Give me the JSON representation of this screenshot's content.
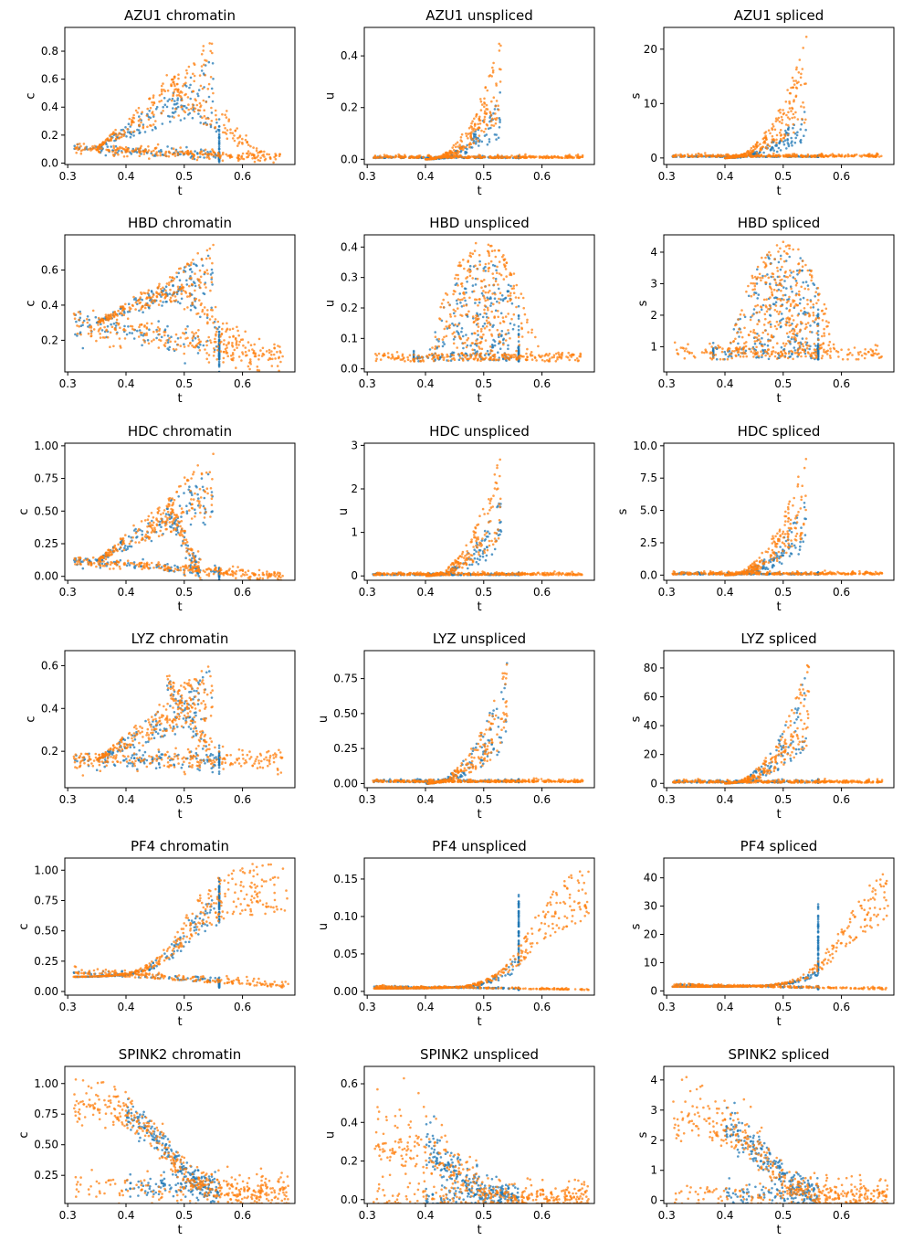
{
  "colors": {
    "series_blue": "#1f77b4",
    "series_orange": "#ff7f0e",
    "axes": "#000000",
    "background": "#ffffff"
  },
  "chart_data": [
    {
      "type": "scatter",
      "title": "AZU1 chromatin",
      "xlabel": "t",
      "ylabel": "c",
      "xlim": [
        0.295,
        0.69
      ],
      "ylim": [
        -0.01,
        0.97
      ],
      "xticks": [
        0.3,
        0.4,
        0.5,
        0.6
      ],
      "xtick_labels": [
        "0.3",
        "0.4",
        "0.5",
        "0.6"
      ],
      "yticks": [
        0.0,
        0.2,
        0.4,
        0.6,
        0.8
      ],
      "ytick_labels": [
        "0.0",
        "0.2",
        "0.4",
        "0.6",
        "0.8"
      ],
      "pattern": "chromatin_bell",
      "peak": 0.92,
      "tail": 0.03,
      "base": 0.11,
      "high_t": 0.64,
      "blue_peak": 0.75
    },
    {
      "type": "scatter",
      "title": "AZU1 unspliced",
      "xlabel": "t",
      "ylabel": "u",
      "xlim": [
        0.295,
        0.69
      ],
      "ylim": [
        -0.02,
        0.51
      ],
      "xticks": [
        0.3,
        0.4,
        0.5,
        0.6
      ],
      "xtick_labels": [
        "0.3",
        "0.4",
        "0.5",
        "0.6"
      ],
      "yticks": [
        0.0,
        0.2,
        0.4
      ],
      "ytick_labels": [
        "0.0",
        "0.2",
        "0.4"
      ],
      "pattern": "rise_spike",
      "peak": 0.48,
      "base": 0.005,
      "tail": 0.005,
      "peak_t": 0.53,
      "blue_peak": 0.28
    },
    {
      "type": "scatter",
      "title": "AZU1 spliced",
      "xlabel": "t",
      "ylabel": "s",
      "xlim": [
        0.295,
        0.69
      ],
      "ylim": [
        -1.2,
        24
      ],
      "xticks": [
        0.3,
        0.4,
        0.5,
        0.6
      ],
      "xtick_labels": [
        "0.3",
        "0.4",
        "0.5",
        "0.6"
      ],
      "yticks": [
        0,
        10,
        20
      ],
      "ytick_labels": [
        "0",
        "10",
        "20"
      ],
      "pattern": "rise_spike",
      "peak": 22.5,
      "base": 0.2,
      "tail": 0.1,
      "peak_t": 0.54,
      "blue_peak": 10
    },
    {
      "type": "scatter",
      "title": "HBD chromatin",
      "xlabel": "t",
      "ylabel": "c",
      "xlim": [
        0.295,
        0.69
      ],
      "ylim": [
        0.02,
        0.8
      ],
      "xticks": [
        0.3,
        0.4,
        0.5,
        0.6
      ],
      "xtick_labels": [
        "0.3",
        "0.4",
        "0.5",
        "0.6"
      ],
      "yticks": [
        0.2,
        0.4,
        0.6
      ],
      "ytick_labels": [
        "0.2",
        "0.4",
        "0.6"
      ],
      "pattern": "chromatin_bell",
      "peak": 0.76,
      "tail": 0.1,
      "base": 0.3,
      "high_t": 0.62,
      "blue_peak": 0.72
    },
    {
      "type": "scatter",
      "title": "HBD unspliced",
      "xlabel": "t",
      "ylabel": "u",
      "xlim": [
        0.295,
        0.69
      ],
      "ylim": [
        -0.01,
        0.44
      ],
      "xticks": [
        0.3,
        0.4,
        0.5,
        0.6
      ],
      "xtick_labels": [
        "0.3",
        "0.4",
        "0.5",
        "0.6"
      ],
      "yticks": [
        0.0,
        0.1,
        0.2,
        0.3,
        0.4
      ],
      "ytick_labels": [
        "0.0",
        "0.1",
        "0.2",
        "0.3",
        "0.4"
      ],
      "pattern": "bump",
      "peak": 0.42,
      "base": 0.025,
      "tail": 0.06,
      "peak_t": 0.5,
      "blue_peak": 0.36
    },
    {
      "type": "scatter",
      "title": "HBD spliced",
      "xlabel": "t",
      "ylabel": "s",
      "xlim": [
        0.295,
        0.69
      ],
      "ylim": [
        0.2,
        4.55
      ],
      "xticks": [
        0.3,
        0.4,
        0.5,
        0.6
      ],
      "xtick_labels": [
        "0.3",
        "0.4",
        "0.5",
        "0.6"
      ],
      "yticks": [
        1,
        2,
        3,
        4
      ],
      "ytick_labels": [
        "1",
        "2",
        "3",
        "4"
      ],
      "pattern": "bump",
      "peak": 4.35,
      "base": 0.6,
      "tail": 1.1,
      "peak_t": 0.5,
      "blue_peak": 4.2
    },
    {
      "type": "scatter",
      "title": "HDC chromatin",
      "xlabel": "t",
      "ylabel": "c",
      "xlim": [
        0.295,
        0.69
      ],
      "ylim": [
        -0.03,
        1.02
      ],
      "xticks": [
        0.3,
        0.4,
        0.5,
        0.6
      ],
      "xtick_labels": [
        "0.3",
        "0.4",
        "0.5",
        "0.6"
      ],
      "yticks": [
        0.0,
        0.25,
        0.5,
        0.75,
        1.0
      ],
      "ytick_labels": [
        "0.00",
        "0.25",
        "0.50",
        "0.75",
        "1.00"
      ],
      "pattern": "chromatin_bell",
      "peak": 0.97,
      "tail": 0.0,
      "base": 0.12,
      "high_t": 0.53,
      "blue_peak": 0.85
    },
    {
      "type": "scatter",
      "title": "HDC unspliced",
      "xlabel": "t",
      "ylabel": "u",
      "xlim": [
        0.295,
        0.69
      ],
      "ylim": [
        -0.1,
        3.05
      ],
      "xticks": [
        0.3,
        0.4,
        0.5,
        0.6
      ],
      "xtick_labels": [
        "0.3",
        "0.4",
        "0.5",
        "0.6"
      ],
      "yticks": [
        0,
        1,
        2,
        3
      ],
      "ytick_labels": [
        "0",
        "1",
        "2",
        "3"
      ],
      "pattern": "rise_spike",
      "peak": 2.9,
      "base": 0.02,
      "tail": 0.02,
      "peak_t": 0.53,
      "blue_peak": 1.9
    },
    {
      "type": "scatter",
      "title": "HDC spliced",
      "xlabel": "t",
      "ylabel": "s",
      "xlim": [
        0.295,
        0.69
      ],
      "ylim": [
        -0.4,
        10.2
      ],
      "xticks": [
        0.3,
        0.4,
        0.5,
        0.6
      ],
      "xtick_labels": [
        "0.3",
        "0.4",
        "0.5",
        "0.6"
      ],
      "yticks": [
        0.0,
        2.5,
        5.0,
        7.5,
        10.0
      ],
      "ytick_labels": [
        "0.0",
        "2.5",
        "5.0",
        "7.5",
        "10.0"
      ],
      "pattern": "rise_spike",
      "peak": 9.8,
      "base": 0.05,
      "tail": 0.05,
      "peak_t": 0.54,
      "blue_peak": 6
    },
    {
      "type": "scatter",
      "title": "LYZ chromatin",
      "xlabel": "t",
      "ylabel": "c",
      "xlim": [
        0.295,
        0.69
      ],
      "ylim": [
        0.03,
        0.67
      ],
      "xticks": [
        0.3,
        0.4,
        0.5,
        0.6
      ],
      "xtick_labels": [
        "0.3",
        "0.4",
        "0.5",
        "0.6"
      ],
      "yticks": [
        0.2,
        0.4,
        0.6
      ],
      "ytick_labels": [
        "0.2",
        "0.4",
        "0.6"
      ],
      "pattern": "chromatin_bell",
      "peak": 0.64,
      "tail": 0.16,
      "base": 0.16,
      "high_t": 0.55,
      "blue_peak": 0.6
    },
    {
      "type": "scatter",
      "title": "LYZ unspliced",
      "xlabel": "t",
      "ylabel": "u",
      "xlim": [
        0.295,
        0.69
      ],
      "ylim": [
        -0.03,
        0.95
      ],
      "xticks": [
        0.3,
        0.4,
        0.5,
        0.6
      ],
      "xtick_labels": [
        "0.3",
        "0.4",
        "0.5",
        "0.6"
      ],
      "yticks": [
        0.0,
        0.25,
        0.5,
        0.75
      ],
      "ytick_labels": [
        "0.00",
        "0.25",
        "0.50",
        "0.75"
      ],
      "pattern": "rise_spike",
      "peak": 0.9,
      "base": 0.01,
      "tail": 0.01,
      "peak_t": 0.54,
      "blue_peak": 0.9
    },
    {
      "type": "scatter",
      "title": "LYZ spliced",
      "xlabel": "t",
      "ylabel": "s",
      "xlim": [
        0.295,
        0.69
      ],
      "ylim": [
        -3,
        92
      ],
      "xticks": [
        0.3,
        0.4,
        0.5,
        0.6
      ],
      "xtick_labels": [
        "0.3",
        "0.4",
        "0.5",
        "0.6"
      ],
      "yticks": [
        0,
        20,
        40,
        60,
        80
      ],
      "ytick_labels": [
        "0",
        "20",
        "40",
        "60",
        "80"
      ],
      "pattern": "rise_spike",
      "peak": 88,
      "base": 0.5,
      "tail": 0.5,
      "peak_t": 0.545,
      "blue_peak": 85
    },
    {
      "type": "scatter",
      "title": "PF4 chromatin",
      "xlabel": "t",
      "ylabel": "c",
      "xlim": [
        0.295,
        0.69
      ],
      "ylim": [
        -0.03,
        1.1
      ],
      "xticks": [
        0.3,
        0.4,
        0.5,
        0.6
      ],
      "xtick_labels": [
        "0.3",
        "0.4",
        "0.5",
        "0.6"
      ],
      "yticks": [
        0.0,
        0.25,
        0.5,
        0.75,
        1.0
      ],
      "ytick_labels": [
        "0.00",
        "0.25",
        "0.50",
        "0.75",
        "1.00"
      ],
      "pattern": "sigmoid_rise",
      "peak": 1.07,
      "base": 0.12,
      "tail": 0.03,
      "mid_t": 0.5,
      "blue_peak": 0.95
    },
    {
      "type": "scatter",
      "title": "PF4 unspliced",
      "xlabel": "t",
      "ylabel": "u",
      "xlim": [
        0.295,
        0.69
      ],
      "ylim": [
        -0.005,
        0.178
      ],
      "xticks": [
        0.3,
        0.4,
        0.5,
        0.6
      ],
      "xtick_labels": [
        "0.3",
        "0.4",
        "0.5",
        "0.6"
      ],
      "yticks": [
        0.0,
        0.05,
        0.1,
        0.15
      ],
      "ytick_labels": [
        "0.00",
        "0.05",
        "0.10",
        "0.15"
      ],
      "pattern": "sigmoid_rise",
      "peak": 0.17,
      "base": 0.004,
      "tail": 0.002,
      "mid_t": 0.58,
      "blue_peak": 0.14
    },
    {
      "type": "scatter",
      "title": "PF4 spliced",
      "xlabel": "t",
      "ylabel": "s",
      "xlim": [
        0.295,
        0.69
      ],
      "ylim": [
        -1.5,
        47
      ],
      "xticks": [
        0.3,
        0.4,
        0.5,
        0.6
      ],
      "xtick_labels": [
        "0.3",
        "0.4",
        "0.5",
        "0.6"
      ],
      "yticks": [
        0,
        10,
        20,
        30,
        40
      ],
      "ytick_labels": [
        "0",
        "10",
        "20",
        "30",
        "40"
      ],
      "pattern": "sigmoid_rise",
      "peak": 45,
      "base": 1.5,
      "tail": 0.5,
      "mid_t": 0.6,
      "blue_peak": 35
    },
    {
      "type": "scatter",
      "title": "SPINK2 chromatin",
      "xlabel": "t",
      "ylabel": "c",
      "xlim": [
        0.295,
        0.69
      ],
      "ylim": [
        0.02,
        1.14
      ],
      "xticks": [
        0.3,
        0.4,
        0.5,
        0.6
      ],
      "xtick_labels": [
        "0.3",
        "0.4",
        "0.5",
        "0.6"
      ],
      "yticks": [
        0.25,
        0.5,
        0.75,
        1.0
      ],
      "ytick_labels": [
        "0.25",
        "0.50",
        "0.75",
        "1.00"
      ],
      "pattern": "decline",
      "peak": 1.08,
      "base": 0.78,
      "tail": 0.1,
      "mid_t": 0.47,
      "blue_peak": 0.95
    },
    {
      "type": "scatter",
      "title": "SPINK2 unspliced",
      "xlabel": "t",
      "ylabel": "u",
      "xlim": [
        0.295,
        0.69
      ],
      "ylim": [
        -0.02,
        0.69
      ],
      "xticks": [
        0.3,
        0.4,
        0.5,
        0.6
      ],
      "xtick_labels": [
        "0.3",
        "0.4",
        "0.5",
        "0.6"
      ],
      "yticks": [
        0.0,
        0.2,
        0.4,
        0.6
      ],
      "ytick_labels": [
        "0.0",
        "0.2",
        "0.4",
        "0.6"
      ],
      "pattern": "decline",
      "peak": 0.65,
      "base": 0.25,
      "tail": 0.005,
      "mid_t": 0.45,
      "blue_peak": 0.55
    },
    {
      "type": "scatter",
      "title": "SPINK2 spliced",
      "xlabel": "t",
      "ylabel": "s",
      "xlim": [
        0.295,
        0.69
      ],
      "ylim": [
        -0.1,
        4.45
      ],
      "xticks": [
        0.3,
        0.4,
        0.5,
        0.6
      ],
      "xtick_labels": [
        "0.3",
        "0.4",
        "0.5",
        "0.6"
      ],
      "yticks": [
        0,
        1,
        2,
        3,
        4
      ],
      "ytick_labels": [
        "0",
        "1",
        "2",
        "3",
        "4"
      ],
      "pattern": "decline",
      "peak": 4.2,
      "base": 2.45,
      "tail": 0.1,
      "mid_t": 0.47,
      "blue_peak": 3.8
    }
  ]
}
